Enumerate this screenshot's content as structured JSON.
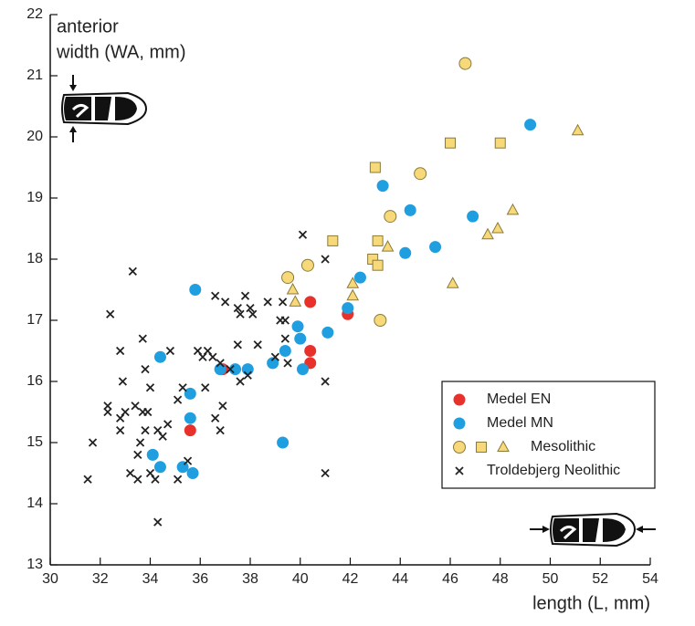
{
  "chart_data": {
    "type": "scatter",
    "y_label": [
      "anterior",
      "width (WA, mm)"
    ],
    "x_label": "length (L, mm)",
    "xlim": [
      30,
      54
    ],
    "xticks": [
      30,
      32,
      34,
      36,
      38,
      40,
      42,
      44,
      46,
      48,
      50,
      52,
      54
    ],
    "ylim": [
      13,
      22
    ],
    "yticks": [
      13,
      14,
      15,
      16,
      17,
      18,
      19,
      20,
      21,
      22
    ],
    "series": [
      {
        "name": "Medel EN",
        "color": "#e8312a",
        "marker": "circle",
        "x": [
          35.6,
          36.9,
          40.4,
          40.4,
          40.4,
          41.9
        ],
        "values": [
          15.2,
          16.2,
          17.3,
          16.5,
          16.3,
          17.1
        ]
      },
      {
        "name": "Medel MN",
        "color": "#1f9ee0",
        "marker": "circle",
        "x": [
          49.2,
          43.3,
          44.4,
          46.9,
          44.2,
          45.4,
          42.4,
          41.9,
          35.8,
          39.9,
          40.0,
          41.1,
          39.4,
          38.9,
          40.1,
          34.4,
          36.8,
          37.4,
          37.9,
          35.6,
          35.6,
          39.3,
          34.1,
          34.4,
          35.3,
          35.7
        ],
        "values": [
          20.2,
          19.2,
          18.8,
          18.7,
          18.1,
          18.2,
          17.7,
          17.2,
          17.5,
          16.9,
          16.7,
          16.8,
          16.5,
          16.3,
          16.2,
          16.4,
          16.2,
          16.2,
          16.2,
          15.8,
          15.4,
          15.0,
          14.8,
          14.6,
          14.6,
          14.5
        ]
      },
      {
        "name": "Mesolithic",
        "color": "#f7d97a",
        "markers": [
          "circle",
          "circle",
          "circle",
          "circle",
          "circle",
          "circle",
          "square",
          "square",
          "square",
          "square",
          "square",
          "square",
          "square",
          "triangle",
          "triangle",
          "triangle",
          "triangle",
          "triangle",
          "triangle",
          "triangle",
          "triangle",
          "triangle",
          "triangle"
        ],
        "x": [
          46.6,
          44.8,
          43.6,
          40.3,
          39.5,
          43.2,
          46.0,
          48.0,
          43.0,
          41.3,
          43.1,
          42.9,
          43.1,
          51.1,
          48.5,
          47.5,
          47.9,
          43.5,
          42.1,
          46.1,
          39.7,
          39.8,
          42.1
        ],
        "values": [
          21.2,
          19.4,
          18.7,
          17.9,
          17.7,
          17.0,
          19.9,
          19.9,
          19.5,
          18.3,
          18.3,
          18.0,
          17.9,
          20.1,
          18.8,
          18.4,
          18.5,
          18.2,
          17.6,
          17.6,
          17.5,
          17.3,
          17.4
        ]
      },
      {
        "name": "Troldebjerg Neolithic",
        "color": "#222222",
        "marker": "x",
        "x": [
          31.5,
          31.7,
          32.3,
          32.3,
          32.4,
          32.8,
          32.8,
          32.8,
          32.9,
          33.0,
          33.2,
          33.3,
          33.4,
          33.5,
          33.5,
          33.6,
          33.7,
          33.7,
          33.8,
          33.8,
          33.9,
          34.0,
          34.0,
          34.2,
          34.3,
          34.3,
          34.5,
          34.7,
          34.8,
          35.1,
          35.1,
          35.3,
          35.5,
          35.9,
          36.1,
          36.2,
          36.3,
          36.5,
          36.6,
          36.6,
          36.8,
          36.8,
          36.9,
          37.0,
          37.2,
          37.5,
          37.5,
          37.6,
          37.6,
          37.8,
          37.9,
          38.0,
          38.1,
          38.3,
          38.7,
          39.0,
          39.2,
          39.3,
          39.4,
          39.4,
          39.5,
          40.1,
          41.0,
          41.0,
          41.0
        ],
        "values": [
          14.4,
          15.0,
          15.6,
          15.5,
          17.1,
          16.5,
          15.4,
          15.2,
          16.0,
          15.5,
          14.5,
          17.8,
          15.6,
          14.8,
          14.4,
          15.0,
          16.7,
          15.5,
          16.2,
          15.2,
          15.5,
          15.9,
          14.5,
          14.4,
          15.2,
          13.7,
          15.1,
          15.3,
          16.5,
          15.7,
          14.4,
          15.9,
          14.7,
          16.5,
          16.4,
          15.9,
          16.5,
          16.4,
          15.4,
          17.4,
          16.3,
          15.2,
          15.6,
          17.3,
          16.2,
          17.2,
          16.6,
          16.0,
          17.1,
          17.4,
          16.1,
          17.2,
          17.1,
          16.6,
          17.3,
          16.4,
          17.0,
          17.3,
          16.7,
          17.0,
          16.3,
          18.4,
          18.0,
          16.0,
          14.5
        ]
      }
    ]
  }
}
